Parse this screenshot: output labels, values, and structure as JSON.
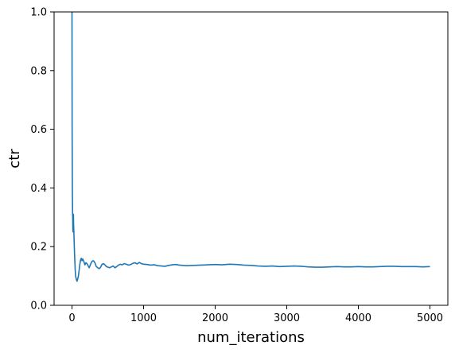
{
  "chart_data": {
    "type": "line",
    "title": "",
    "xlabel": "num_iterations",
    "ylabel": "ctr",
    "xlim": [
      -250,
      5250
    ],
    "ylim": [
      0.0,
      1.0
    ],
    "xticks": [
      0,
      1000,
      2000,
      3000,
      4000,
      5000
    ],
    "xtick_labels": [
      "0",
      "1000",
      "2000",
      "3000",
      "4000",
      "5000"
    ],
    "yticks": [
      0.0,
      0.2,
      0.4,
      0.6,
      0.8,
      1.0
    ],
    "ytick_labels": [
      "0.0",
      "0.2",
      "0.4",
      "0.6",
      "0.8",
      "1.0"
    ],
    "grid": false,
    "legend": false,
    "series": [
      {
        "name": "ctr",
        "color": "#1f77b4",
        "x": [
          0,
          2,
          5,
          8,
          10,
          12,
          15,
          18,
          20,
          22,
          25,
          30,
          35,
          40,
          45,
          50,
          55,
          60,
          65,
          70,
          80,
          90,
          100,
          110,
          120,
          130,
          140,
          150,
          165,
          180,
          195,
          210,
          225,
          240,
          260,
          280,
          300,
          320,
          340,
          360,
          380,
          400,
          420,
          440,
          460,
          480,
          500,
          525,
          550,
          575,
          600,
          625,
          650,
          675,
          700,
          730,
          760,
          790,
          820,
          850,
          880,
          910,
          940,
          970,
          1000,
          1050,
          1100,
          1150,
          1200,
          1250,
          1300,
          1350,
          1400,
          1450,
          1500,
          1600,
          1700,
          1800,
          1900,
          2000,
          2100,
          2200,
          2300,
          2400,
          2500,
          2600,
          2700,
          2800,
          2900,
          3000,
          3100,
          3200,
          3300,
          3400,
          3500,
          3600,
          3700,
          3800,
          3900,
          4000,
          4100,
          4200,
          4300,
          4400,
          4500,
          4600,
          4700,
          4800,
          4900,
          5000
        ],
        "y": [
          1.0,
          0.6,
          0.4,
          0.32,
          0.3,
          0.26,
          0.25,
          0.27,
          0.31,
          0.28,
          0.26,
          0.22,
          0.18,
          0.15,
          0.12,
          0.1,
          0.095,
          0.09,
          0.085,
          0.082,
          0.09,
          0.1,
          0.12,
          0.14,
          0.155,
          0.16,
          0.152,
          0.158,
          0.15,
          0.138,
          0.145,
          0.142,
          0.135,
          0.128,
          0.14,
          0.15,
          0.152,
          0.145,
          0.132,
          0.128,
          0.125,
          0.13,
          0.14,
          0.142,
          0.138,
          0.132,
          0.13,
          0.128,
          0.131,
          0.134,
          0.128,
          0.132,
          0.137,
          0.14,
          0.138,
          0.142,
          0.14,
          0.137,
          0.139,
          0.143,
          0.145,
          0.141,
          0.146,
          0.142,
          0.14,
          0.139,
          0.137,
          0.138,
          0.135,
          0.134,
          0.133,
          0.136,
          0.138,
          0.139,
          0.137,
          0.135,
          0.136,
          0.137,
          0.138,
          0.139,
          0.138,
          0.14,
          0.139,
          0.137,
          0.136,
          0.134,
          0.133,
          0.134,
          0.132,
          0.133,
          0.134,
          0.133,
          0.131,
          0.13,
          0.13,
          0.131,
          0.132,
          0.131,
          0.131,
          0.132,
          0.131,
          0.131,
          0.132,
          0.133,
          0.133,
          0.132,
          0.132,
          0.132,
          0.131,
          0.132
        ]
      }
    ]
  }
}
